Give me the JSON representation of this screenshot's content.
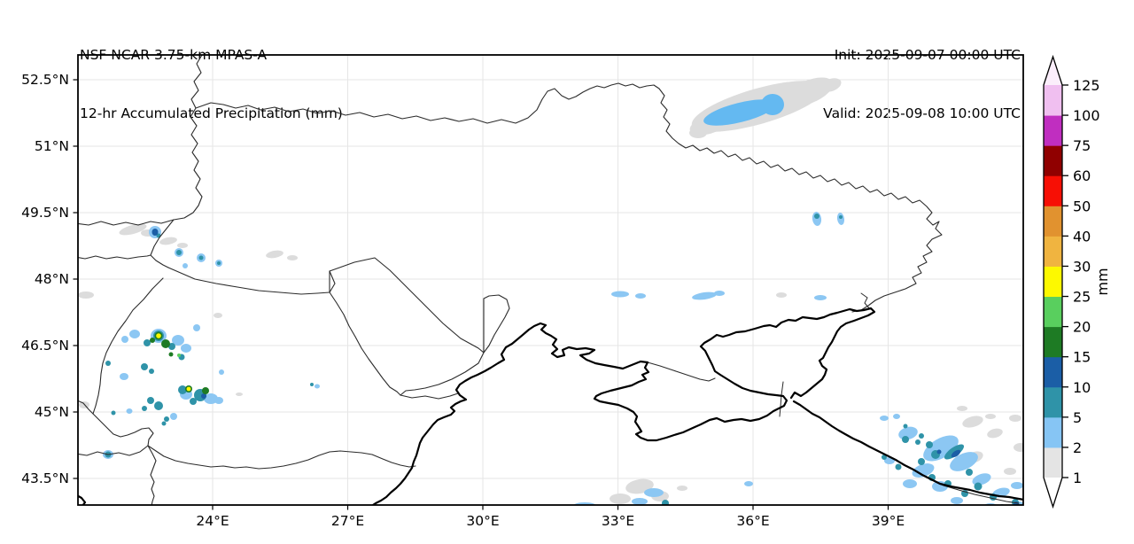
{
  "header": {
    "model": "NSF NCAR 3.75-km MPAS-A",
    "product": "12-hr Accumulated Precipitation (mm)",
    "init": "Init: 2025-09-07 00:00 UTC",
    "valid": "Valid: 2025-09-08 10:00 UTC"
  },
  "axes": {
    "x_tick_labels": [
      "24°E",
      "27°E",
      "30°E",
      "33°E",
      "36°E",
      "39°E"
    ],
    "y_tick_labels": [
      "52.5°N",
      "51°N",
      "49.5°N",
      "48°N",
      "46.5°N",
      "45°N",
      "43.5°N"
    ]
  },
  "colorbar": {
    "unit_label": "mm",
    "tick_labels": [
      "1",
      "2",
      "5",
      "10",
      "15",
      "20",
      "25",
      "30",
      "40",
      "50",
      "60",
      "75",
      "100",
      "125"
    ],
    "segment_colors_bottom_to_top": [
      "#e4e4e4",
      "#86c5f4",
      "#2f93a8",
      "#1b5ea6",
      "#1e7b24",
      "#59cf5e",
      "#fdf900",
      "#f0b440",
      "#e1922f",
      "#f70f05",
      "#900000",
      "#c02ec0",
      "#f0bff0"
    ],
    "under_arrow_color": "#ffffff",
    "over_arrow_color": "#fbeefb"
  },
  "map": {
    "precip_palette": {
      "trace_gray": "#dcdcdc",
      "light_blue": "#8cc7f3",
      "sky_blue": "#64b9f1",
      "teal": "#2f93a8",
      "dark_blue": "#1b5ea6",
      "dark_green": "#1e7b24",
      "light_green": "#59cf5e",
      "yellow": "#fdf900"
    },
    "grid_color": "#e6e6e6"
  }
}
